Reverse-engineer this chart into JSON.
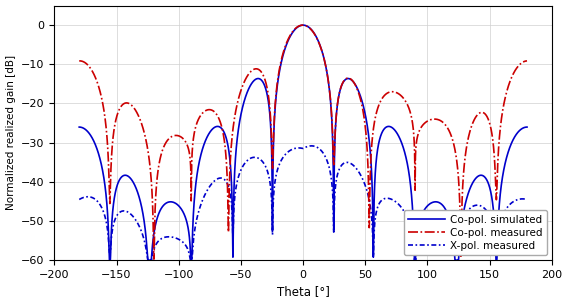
{
  "title": "",
  "xlabel": "Theta [°]",
  "ylabel": "Normalized realized gain [dB]",
  "xlim": [
    -200,
    200
  ],
  "ylim": [
    -60,
    5
  ],
  "xticks": [
    -200,
    -150,
    -100,
    -50,
    0,
    50,
    100,
    150,
    200
  ],
  "yticks": [
    0,
    -10,
    -20,
    -30,
    -40,
    -50,
    -60
  ],
  "legend": [
    "Co-pol. simulated",
    "Co-pol. measured",
    "X-pol. measured"
  ],
  "copol_sim_color": "#0000cc",
  "copol_meas_color": "#cc0000",
  "xpol_meas_color": "#0000cc",
  "lw": 1.2,
  "background_color": "#ffffff",
  "grid_color": "#d0d0d0"
}
